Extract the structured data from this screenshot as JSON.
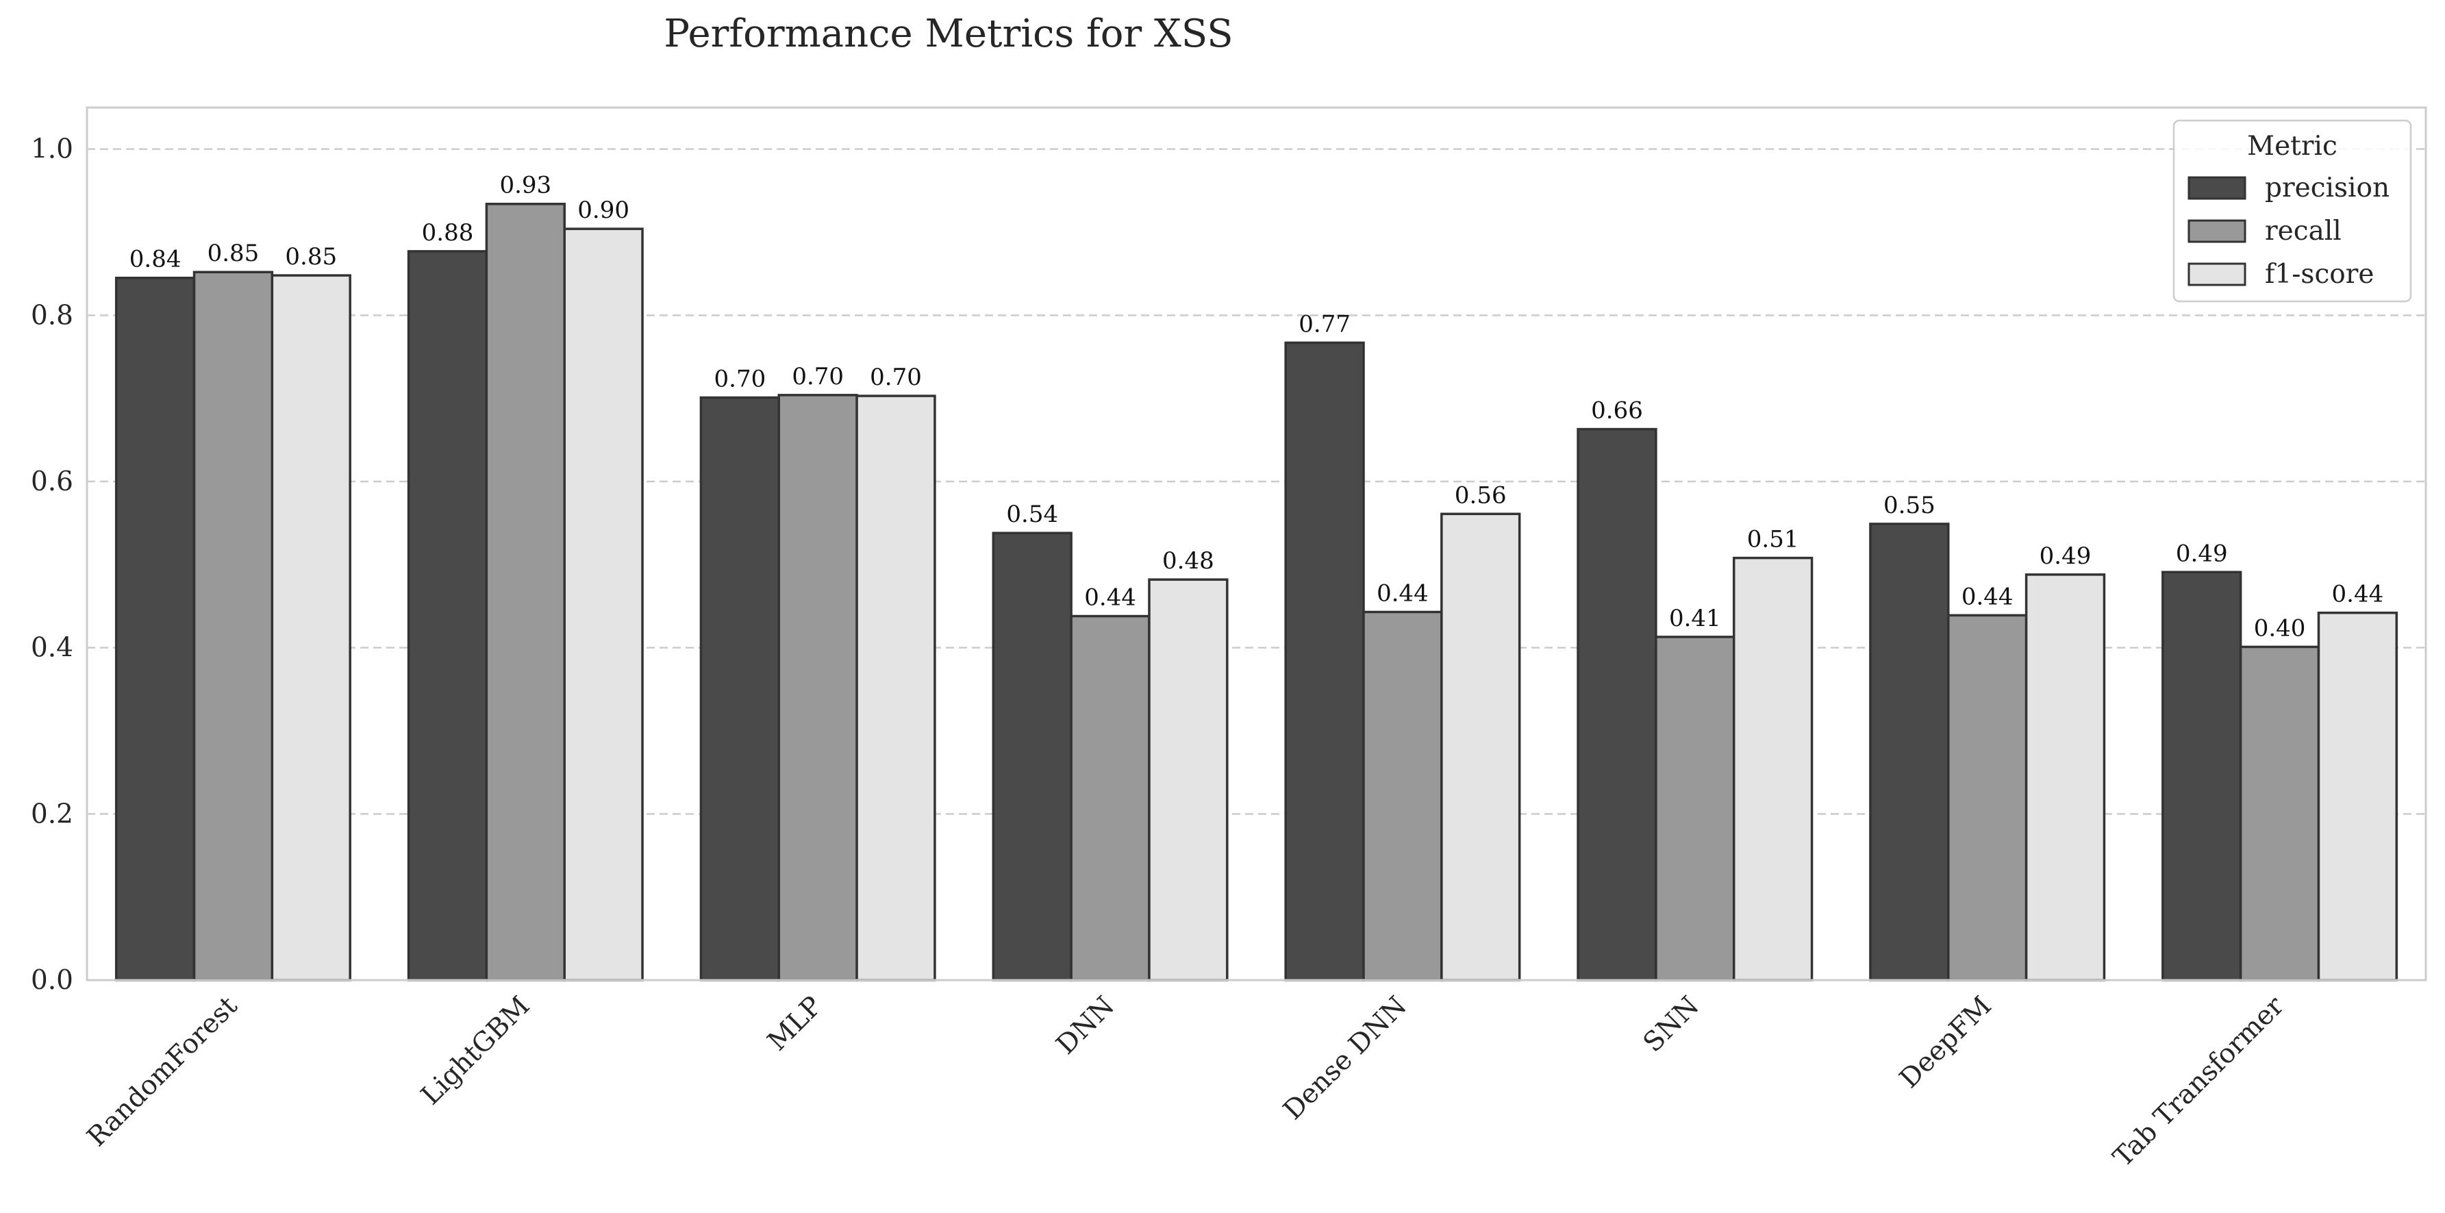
{
  "chart_data": {
    "type": "bar",
    "title": "Performance Metrics for XSS",
    "xlabel": "",
    "ylabel": "",
    "ylim": [
      0,
      1.05
    ],
    "yticks": [
      0.0,
      0.2,
      0.4,
      0.6,
      0.8,
      1.0
    ],
    "ytick_labels": [
      "0.0",
      "0.2",
      "0.4",
      "0.6",
      "0.8",
      "1.0"
    ],
    "grid": "horizontal dashed",
    "categories": [
      "RandomForest",
      "LightGBM",
      "MLP",
      "DNN",
      "Dense DNN",
      "SNN",
      "DeepFM",
      "Tab Transformer"
    ],
    "series": [
      {
        "name": "precision",
        "color": "#4a4a4a",
        "values": [
          0.845,
          0.877,
          0.701,
          0.538,
          0.767,
          0.663,
          0.549,
          0.491
        ],
        "labels": [
          "0.84",
          "0.88",
          "0.70",
          "0.54",
          "0.77",
          "0.66",
          "0.55",
          "0.49"
        ]
      },
      {
        "name": "recall",
        "color": "#999999",
        "values": [
          0.852,
          0.934,
          0.704,
          0.438,
          0.443,
          0.413,
          0.439,
          0.401
        ],
        "labels": [
          "0.85",
          "0.93",
          "0.70",
          "0.44",
          "0.44",
          "0.41",
          "0.44",
          "0.40"
        ]
      },
      {
        "name": "f1-score",
        "color": "#e4e4e4",
        "values": [
          0.848,
          0.904,
          0.703,
          0.482,
          0.561,
          0.508,
          0.488,
          0.442
        ],
        "labels": [
          "0.85",
          "0.90",
          "0.70",
          "0.48",
          "0.56",
          "0.51",
          "0.49",
          "0.44"
        ]
      }
    ],
    "legend": {
      "title": "Metric",
      "position": "top-right"
    }
  }
}
